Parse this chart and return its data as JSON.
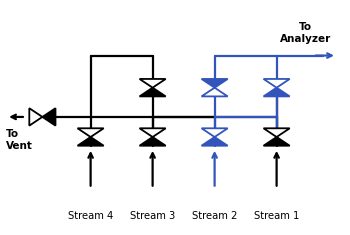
{
  "bg_color": "#ffffff",
  "black": "#000000",
  "blue": "#3355bb",
  "streams": [
    "Stream 4",
    "Stream 3",
    "Stream 2",
    "Stream 1"
  ],
  "to_vent": "To\nVent",
  "to_analyzer": "To\nAnalyzer",
  "lw": 1.6,
  "valve_s": 0.038
}
